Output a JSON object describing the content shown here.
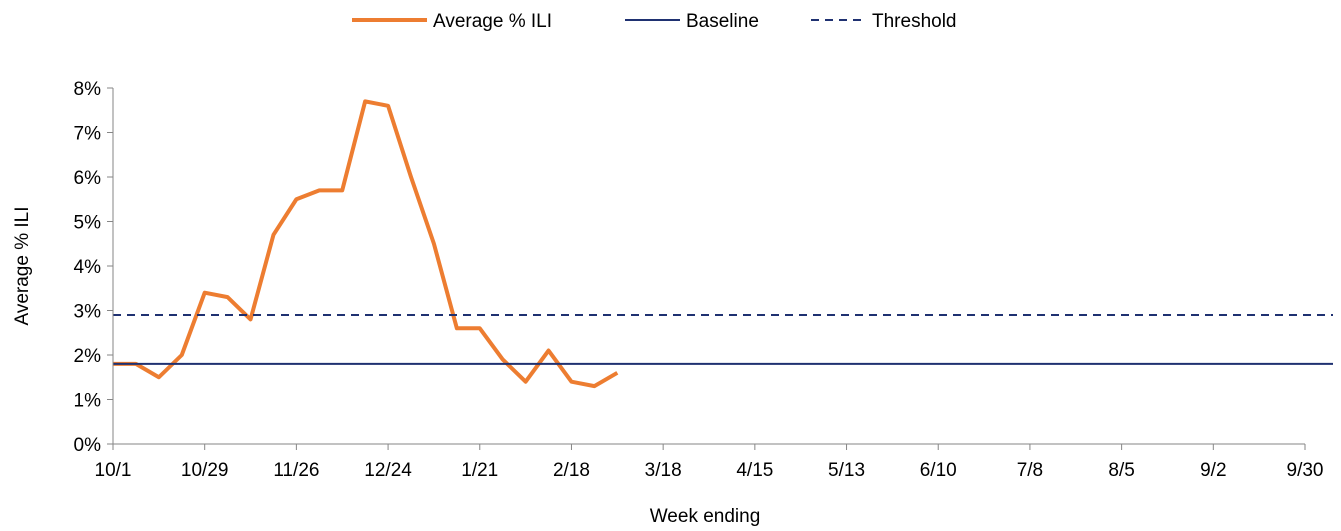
{
  "chart_data": {
    "type": "line",
    "title": "",
    "xlabel": "Week ending",
    "ylabel": "Average % ILI",
    "x_axis": {
      "min_week": 0,
      "max_week": 52,
      "ticks": [
        {
          "label": "10/1",
          "week": 0
        },
        {
          "label": "10/29",
          "week": 4
        },
        {
          "label": "11/26",
          "week": 8
        },
        {
          "label": "12/24",
          "week": 12
        },
        {
          "label": "1/21",
          "week": 16
        },
        {
          "label": "2/18",
          "week": 20
        },
        {
          "label": "3/18",
          "week": 24
        },
        {
          "label": "4/15",
          "week": 28
        },
        {
          "label": "5/13",
          "week": 32
        },
        {
          "label": "6/10",
          "week": 36
        },
        {
          "label": "7/8",
          "week": 40
        },
        {
          "label": "8/5",
          "week": 44
        },
        {
          "label": "9/2",
          "week": 48
        },
        {
          "label": "9/30",
          "week": 52
        }
      ]
    },
    "y_axis": {
      "min": 0,
      "max": 8,
      "ticks": [
        {
          "label": "0%",
          "value": 0
        },
        {
          "label": "1%",
          "value": 1
        },
        {
          "label": "2%",
          "value": 2
        },
        {
          "label": "3%",
          "value": 3
        },
        {
          "label": "4%",
          "value": 4
        },
        {
          "label": "5%",
          "value": 5
        },
        {
          "label": "6%",
          "value": 6
        },
        {
          "label": "7%",
          "value": 7
        },
        {
          "label": "8%",
          "value": 8
        }
      ]
    },
    "grid": false,
    "legend_position": "top-center",
    "series": [
      {
        "name": "Average % ILI",
        "style": "solid",
        "color": "#ed7d31",
        "points": [
          {
            "week": 0,
            "value": 1.8
          },
          {
            "week": 1,
            "value": 1.8
          },
          {
            "week": 2,
            "value": 1.5
          },
          {
            "week": 3,
            "value": 2.0
          },
          {
            "week": 4,
            "value": 3.4
          },
          {
            "week": 5,
            "value": 3.3
          },
          {
            "week": 6,
            "value": 2.8
          },
          {
            "week": 7,
            "value": 4.7
          },
          {
            "week": 8,
            "value": 5.5
          },
          {
            "week": 9,
            "value": 5.7
          },
          {
            "week": 10,
            "value": 5.7
          },
          {
            "week": 11,
            "value": 7.7
          },
          {
            "week": 12,
            "value": 7.6
          },
          {
            "week": 13,
            "value": 6.0
          },
          {
            "week": 14,
            "value": 4.5
          },
          {
            "week": 15,
            "value": 2.6
          },
          {
            "week": 16,
            "value": 2.6
          },
          {
            "week": 17,
            "value": 1.9
          },
          {
            "week": 18,
            "value": 1.4
          },
          {
            "week": 19,
            "value": 2.1
          },
          {
            "week": 20,
            "value": 1.4
          },
          {
            "week": 21,
            "value": 1.3
          },
          {
            "week": 22,
            "value": 1.6
          }
        ]
      },
      {
        "name": "Baseline",
        "style": "solid",
        "color": "#1f3171",
        "value": 1.8
      },
      {
        "name": "Threshold",
        "style": "dashed",
        "color": "#1f3171",
        "value": 2.9
      }
    ]
  }
}
